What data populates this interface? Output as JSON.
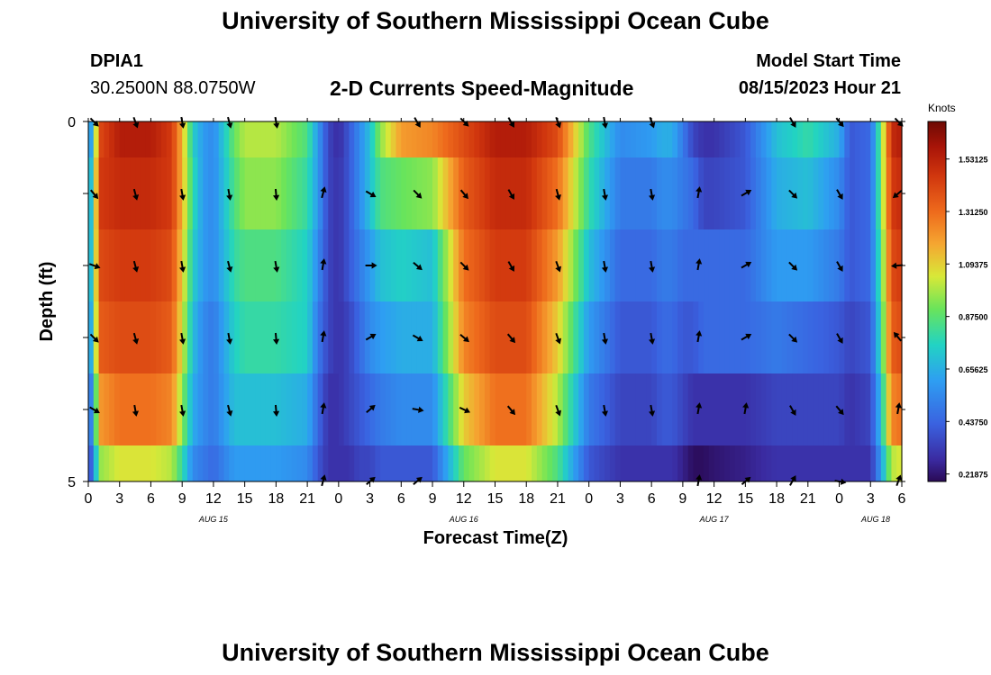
{
  "page": {
    "title": "University of Southern Mississippi Ocean Cube",
    "footer_title": "University of Southern Mississippi Ocean Cube",
    "station_id": "DPIA1",
    "station_coords": "30.2500N  88.0750W",
    "model_start_label": "Model Start Time",
    "model_start_value": "08/15/2023 Hour 21"
  },
  "chart_data": {
    "type": "heatmap",
    "title": "2-D Currents Speed-Magnitude",
    "xlabel": "Forecast Time(Z)",
    "ylabel": "Depth (ft)",
    "y_tick_labels": [
      "0",
      "5"
    ],
    "x_tick_labels": [
      "0",
      "3",
      "6",
      "9",
      "12",
      "15",
      "18",
      "21",
      "0",
      "3",
      "6",
      "9",
      "12",
      "15",
      "18",
      "21",
      "0",
      "3",
      "6",
      "9",
      "12",
      "15",
      "18",
      "21",
      "0",
      "3",
      "6"
    ],
    "date_labels": [
      {
        "label": "AUG 15",
        "hour": 12
      },
      {
        "label": "AUG 16",
        "hour": 36
      },
      {
        "label": "AUG 17",
        "hour": 60
      },
      {
        "label": "AUG 18",
        "hour": 75.5
      }
    ],
    "x_range_hours": [
      0,
      78
    ],
    "depth_range_ft": [
      0,
      5
    ],
    "colorbar": {
      "unit": "Knots",
      "range": [
        0.1875,
        1.6875
      ],
      "tick_labels": [
        "1.53125",
        "1.31250",
        "1.09375",
        "0.87500",
        "0.65625",
        "0.43750",
        "0.21875"
      ],
      "tick_values": [
        1.53125,
        1.3125,
        1.09375,
        0.875,
        0.65625,
        0.4375,
        0.21875
      ]
    },
    "depth_rows": [
      {
        "band": "0.0-0.5",
        "key_hours": [
          0,
          0.5,
          1,
          3,
          6,
          8,
          9,
          10,
          11,
          12,
          14,
          15,
          18,
          21,
          22,
          23,
          24,
          25,
          26,
          27,
          28,
          30,
          33,
          36,
          39,
          42,
          45,
          48,
          51,
          54,
          55,
          56,
          57,
          58,
          59,
          60,
          63,
          66,
          69,
          72,
          73,
          75,
          76,
          77,
          78
        ],
        "speeds": [
          0.55,
          0.7,
          1.4,
          1.55,
          1.55,
          1.45,
          1.15,
          0.75,
          0.6,
          0.55,
          0.9,
          1.0,
          1.0,
          0.85,
          0.6,
          0.35,
          0.28,
          0.4,
          0.55,
          0.7,
          0.95,
          1.2,
          1.25,
          1.4,
          1.55,
          1.55,
          1.4,
          0.85,
          0.55,
          0.6,
          0.65,
          0.65,
          0.5,
          0.35,
          0.3,
          0.3,
          0.4,
          0.7,
          0.8,
          0.65,
          0.4,
          0.45,
          0.9,
          1.5,
          1.55
        ]
      },
      {
        "band": "0.5-1.5",
        "key_hours": [
          0,
          0.5,
          1,
          3,
          6,
          8,
          9,
          10,
          11,
          12,
          14,
          15,
          18,
          21,
          22,
          23,
          24,
          25,
          26,
          27,
          28,
          30,
          33,
          36,
          39,
          42,
          45,
          48,
          51,
          54,
          55,
          56,
          57,
          58,
          59,
          60,
          63,
          66,
          69,
          72,
          73,
          75,
          76,
          77,
          78
        ],
        "speeds": [
          0.6,
          0.8,
          1.45,
          1.5,
          1.5,
          1.45,
          1.15,
          0.8,
          0.6,
          0.55,
          0.85,
          0.95,
          0.95,
          0.8,
          0.6,
          0.35,
          0.3,
          0.4,
          0.55,
          0.7,
          0.85,
          0.9,
          0.95,
          1.35,
          1.5,
          1.5,
          1.3,
          0.8,
          0.5,
          0.5,
          0.55,
          0.55,
          0.5,
          0.45,
          0.35,
          0.35,
          0.4,
          0.65,
          0.7,
          0.55,
          0.4,
          0.45,
          0.9,
          1.45,
          1.5
        ]
      },
      {
        "band": "1.5-2.5",
        "key_hours": [
          0,
          0.5,
          1,
          3,
          6,
          8,
          9,
          10,
          11,
          12,
          14,
          15,
          18,
          21,
          22,
          23,
          24,
          25,
          26,
          27,
          28,
          30,
          33,
          36,
          39,
          42,
          45,
          48,
          51,
          54,
          55,
          56,
          57,
          58,
          59,
          60,
          63,
          66,
          69,
          72,
          73,
          75,
          76,
          77,
          78
        ],
        "speeds": [
          0.6,
          0.8,
          1.4,
          1.45,
          1.45,
          1.4,
          1.1,
          0.75,
          0.6,
          0.55,
          0.8,
          0.85,
          0.85,
          0.75,
          0.55,
          0.35,
          0.3,
          0.4,
          0.5,
          0.6,
          0.7,
          0.75,
          0.7,
          1.3,
          1.45,
          1.45,
          1.2,
          0.7,
          0.45,
          0.45,
          0.5,
          0.5,
          0.45,
          0.45,
          0.45,
          0.45,
          0.45,
          0.6,
          0.6,
          0.5,
          0.4,
          0.45,
          0.85,
          1.4,
          1.45
        ]
      },
      {
        "band": "2.5-3.5",
        "key_hours": [
          0,
          0.5,
          1,
          3,
          6,
          8,
          9,
          10,
          11,
          12,
          14,
          15,
          18,
          21,
          22,
          23,
          24,
          25,
          26,
          27,
          28,
          30,
          33,
          36,
          39,
          42,
          45,
          48,
          51,
          54,
          55,
          56,
          57,
          58,
          59,
          60,
          63,
          66,
          69,
          72,
          73,
          75,
          76,
          77,
          78
        ],
        "speeds": [
          0.55,
          0.75,
          1.35,
          1.4,
          1.4,
          1.35,
          1.05,
          0.7,
          0.55,
          0.5,
          0.75,
          0.8,
          0.8,
          0.75,
          0.5,
          0.35,
          0.3,
          0.35,
          0.45,
          0.55,
          0.6,
          0.65,
          0.65,
          1.25,
          1.4,
          1.4,
          1.1,
          0.6,
          0.4,
          0.4,
          0.45,
          0.45,
          0.4,
          0.4,
          0.45,
          0.45,
          0.45,
          0.5,
          0.45,
          0.4,
          0.35,
          0.4,
          0.8,
          1.35,
          1.4
        ]
      },
      {
        "band": "3.5-4.5",
        "key_hours": [
          0,
          0.5,
          1,
          3,
          6,
          8,
          9,
          10,
          11,
          12,
          14,
          15,
          18,
          21,
          22,
          23,
          24,
          25,
          26,
          27,
          28,
          30,
          33,
          36,
          39,
          42,
          45,
          48,
          51,
          54,
          55,
          56,
          57,
          58,
          59,
          60,
          63,
          66,
          69,
          72,
          73,
          75,
          76,
          77,
          78
        ],
        "speeds": [
          0.45,
          0.6,
          1.2,
          1.3,
          1.3,
          1.25,
          0.95,
          0.65,
          0.55,
          0.5,
          0.7,
          0.7,
          0.7,
          0.65,
          0.45,
          0.3,
          0.3,
          0.35,
          0.4,
          0.45,
          0.5,
          0.55,
          0.55,
          1.1,
          1.3,
          1.3,
          1.0,
          0.5,
          0.35,
          0.35,
          0.4,
          0.4,
          0.35,
          0.3,
          0.3,
          0.3,
          0.3,
          0.35,
          0.35,
          0.35,
          0.3,
          0.35,
          0.7,
          1.25,
          1.3
        ]
      },
      {
        "band": "4.5-5.0",
        "key_hours": [
          0,
          0.5,
          1,
          3,
          6,
          8,
          9,
          10,
          11,
          12,
          14,
          15,
          18,
          21,
          22,
          23,
          24,
          25,
          26,
          27,
          28,
          30,
          33,
          36,
          39,
          42,
          45,
          48,
          51,
          54,
          55,
          56,
          57,
          58,
          59,
          60,
          63,
          66,
          69,
          72,
          73,
          75,
          76,
          77,
          78
        ],
        "speeds": [
          0.35,
          0.5,
          0.95,
          1.05,
          1.05,
          1.0,
          0.8,
          0.55,
          0.5,
          0.45,
          0.6,
          0.6,
          0.6,
          0.55,
          0.4,
          0.3,
          0.3,
          0.3,
          0.35,
          0.35,
          0.4,
          0.4,
          0.4,
          0.9,
          1.05,
          1.05,
          0.85,
          0.4,
          0.3,
          0.3,
          0.3,
          0.3,
          0.25,
          0.2,
          0.2,
          0.22,
          0.25,
          0.3,
          0.3,
          0.3,
          0.3,
          0.3,
          0.6,
          1.0,
          1.05
        ]
      }
    ],
    "vector_hours": [
      0,
      4.5,
      9,
      13.5,
      18,
      22.5,
      27,
      31.5,
      36,
      40.5,
      45,
      49.5,
      54,
      58.5,
      63,
      67.5,
      72,
      78
    ],
    "vector_depths_ft": [
      0,
      1,
      2,
      3,
      4,
      5
    ],
    "vector_directions_deg": [
      [
        135,
        160,
        170,
        165,
        170,
        null,
        null,
        150,
        135,
        150,
        160,
        170,
        160,
        null,
        null,
        150,
        140,
        135
      ],
      [
        140,
        165,
        170,
        170,
        175,
        15,
        120,
        135,
        140,
        150,
        165,
        170,
        170,
        10,
        60,
        135,
        150,
        230
      ],
      [
        110,
        165,
        170,
        165,
        170,
        10,
        90,
        130,
        135,
        150,
        160,
        170,
        170,
        10,
        60,
        135,
        150,
        265
      ],
      [
        135,
        165,
        170,
        170,
        175,
        10,
        60,
        120,
        130,
        140,
        160,
        170,
        170,
        10,
        60,
        135,
        150,
        320
      ],
      [
        120,
        170,
        170,
        165,
        175,
        10,
        50,
        100,
        115,
        140,
        160,
        170,
        170,
        10,
        10,
        150,
        140,
        10
      ],
      [
        null,
        null,
        null,
        null,
        null,
        15,
        50,
        50,
        null,
        null,
        null,
        null,
        null,
        10,
        50,
        30,
        100,
        20
      ]
    ]
  }
}
